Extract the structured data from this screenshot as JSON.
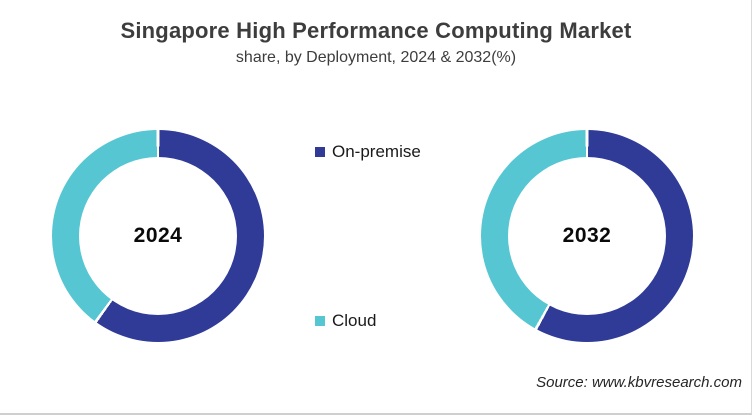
{
  "title": "Singapore High Performance Computing Market",
  "subtitle": "share, by Deployment, 2024 & 2032(%)",
  "source": "Source: www.kbvresearch.com",
  "colors": {
    "on_premise": "#2F3B97",
    "cloud": "#56C6D2",
    "title_text": "#3d3d3d",
    "border": "#d9d9d9",
    "background": "#ffffff"
  },
  "legend": {
    "items": [
      {
        "label": "On-premise",
        "color": "#2F3B97"
      },
      {
        "label": "Cloud",
        "color": "#56C6D2"
      }
    ]
  },
  "chart_data": [
    {
      "type": "pie",
      "donut": true,
      "center_label": "2024",
      "labels": [
        "On-premise",
        "Cloud"
      ],
      "values": [
        60,
        40
      ],
      "colors": [
        "#2F3B97",
        "#56C6D2"
      ],
      "unit": "%",
      "start_angle_deg": 0,
      "segment_gap_deg": 1.6,
      "legend_position": "center-between-donuts"
    },
    {
      "type": "pie",
      "donut": true,
      "center_label": "2032",
      "labels": [
        "On-premise",
        "Cloud"
      ],
      "values": [
        58,
        42
      ],
      "colors": [
        "#2F3B97",
        "#56C6D2"
      ],
      "unit": "%",
      "start_angle_deg": 0,
      "segment_gap_deg": 1.6,
      "legend_position": "center-between-donuts"
    }
  ]
}
